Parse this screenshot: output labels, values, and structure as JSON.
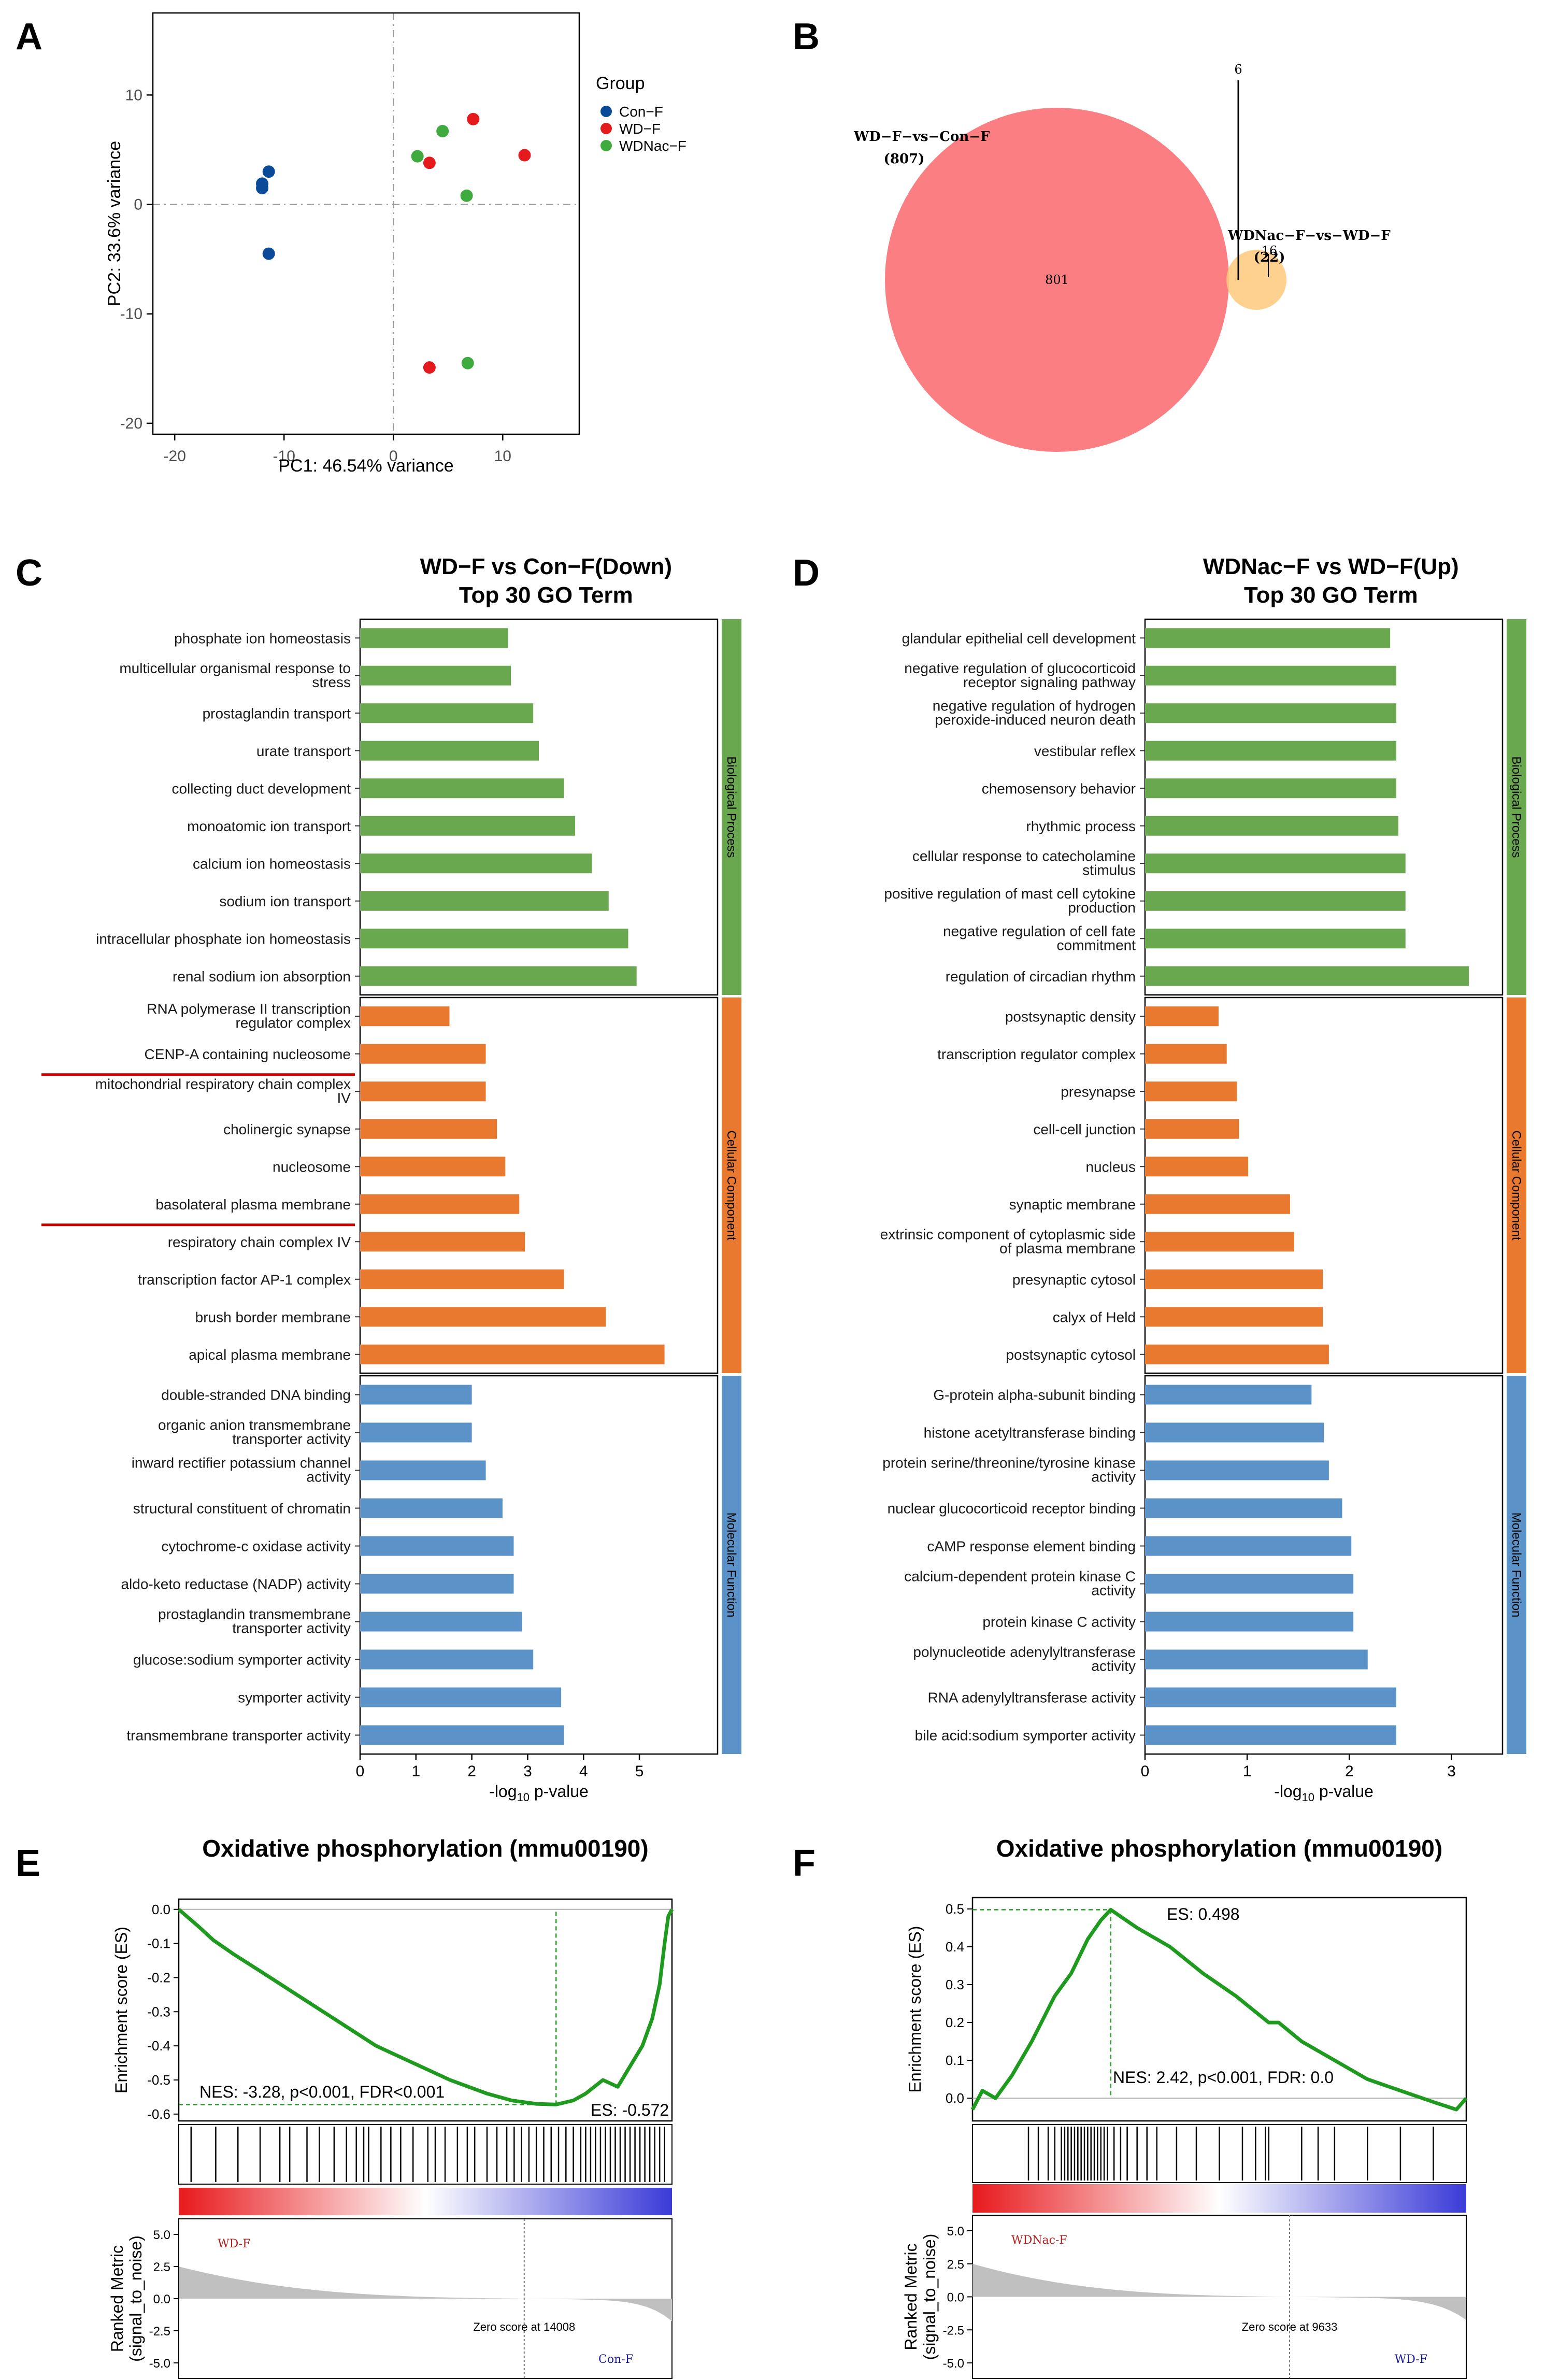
{
  "panels": [
    "A",
    "B",
    "C",
    "D",
    "E",
    "F"
  ],
  "chart_data": [
    {
      "id": "A",
      "type": "scatter",
      "title": "",
      "xlabel": "PC1: 46.54% variance",
      "ylabel": "PC2: 33.6% variance",
      "xlim": [
        -22,
        17
      ],
      "ylim": [
        -21,
        17.5
      ],
      "xticks": [
        -20,
        -10,
        0,
        10
      ],
      "yticks": [
        -20,
        -10,
        0,
        10
      ],
      "legend_title": "Group",
      "series": [
        {
          "name": "Con−F",
          "color": "#0b4a99",
          "points": [
            [
              -12.0,
              1.9
            ],
            [
              -12.0,
              1.5
            ],
            [
              -11.4,
              3.0
            ],
            [
              -11.4,
              -4.5
            ]
          ]
        },
        {
          "name": "WD−F",
          "color": "#e41a1c",
          "points": [
            [
              7.3,
              7.8
            ],
            [
              12.0,
              4.5
            ],
            [
              3.3,
              3.8
            ],
            [
              3.3,
              -14.9
            ]
          ]
        },
        {
          "name": "WDNac−F",
          "color": "#3fab3f",
          "points": [
            [
              4.5,
              6.7
            ],
            [
              2.2,
              4.4
            ],
            [
              6.7,
              0.8
            ],
            [
              6.8,
              -14.5
            ]
          ]
        }
      ]
    },
    {
      "id": "B",
      "type": "venn",
      "sets": [
        {
          "name": "WD−F−vs−Con−F",
          "total": "(807)",
          "only": "801",
          "color": "#fb7e82"
        },
        {
          "name": "WDNac−F−vs−WD−F",
          "total": "(22)",
          "only": "16",
          "color": "#ffc97a"
        }
      ],
      "intersection": "6"
    },
    {
      "id": "C",
      "type": "bar",
      "orientation": "horizontal",
      "title": [
        "WD−F vs Con−F(Down)",
        "Top 30 GO Term"
      ],
      "xlabel": "-log10 p-value",
      "xlim": [
        0,
        6.4
      ],
      "xticks": [
        0,
        1,
        2,
        3,
        4,
        5
      ],
      "underlined": [
        11,
        15
      ],
      "groups": [
        {
          "name": "Biological Process",
          "color": "#6aa84f",
          "terms": [
            {
              "label": [
                "phosphate ion homeostasis"
              ],
              "value": 2.65
            },
            {
              "label": [
                "multicellular organismal response to",
                "stress"
              ],
              "value": 2.7
            },
            {
              "label": [
                "prostaglandin transport"
              ],
              "value": 3.1
            },
            {
              "label": [
                "urate transport"
              ],
              "value": 3.2
            },
            {
              "label": [
                "collecting duct development"
              ],
              "value": 3.65
            },
            {
              "label": [
                "monoatomic ion transport"
              ],
              "value": 3.85
            },
            {
              "label": [
                "calcium ion homeostasis"
              ],
              "value": 4.15
            },
            {
              "label": [
                "sodium ion transport"
              ],
              "value": 4.45
            },
            {
              "label": [
                "intracellular phosphate ion homeostasis"
              ],
              "value": 4.8
            },
            {
              "label": [
                "renal sodium ion absorption"
              ],
              "value": 4.95
            }
          ]
        },
        {
          "name": "Cellular Component",
          "color": "#e8792f",
          "terms": [
            {
              "label": [
                "RNA polymerase II transcription",
                "regulator complex"
              ],
              "value": 1.6
            },
            {
              "label": [
                "CENP-A containing nucleosome"
              ],
              "value": 2.25
            },
            {
              "label": [
                "mitochondrial respiratory chain complex",
                "IV"
              ],
              "value": 2.25
            },
            {
              "label": [
                "cholinergic synapse"
              ],
              "value": 2.45
            },
            {
              "label": [
                "nucleosome"
              ],
              "value": 2.6
            },
            {
              "label": [
                "basolateral plasma membrane"
              ],
              "value": 2.85
            },
            {
              "label": [
                "respiratory chain complex IV"
              ],
              "value": 2.95
            },
            {
              "label": [
                "transcription factor AP-1 complex"
              ],
              "value": 3.65
            },
            {
              "label": [
                "brush border membrane"
              ],
              "value": 4.4
            },
            {
              "label": [
                "apical plasma membrane"
              ],
              "value": 5.45
            }
          ]
        },
        {
          "name": "Molecular Function",
          "color": "#5b93c9",
          "terms": [
            {
              "label": [
                "double-stranded DNA binding"
              ],
              "value": 2.0
            },
            {
              "label": [
                "organic anion transmembrane",
                "transporter activity"
              ],
              "value": 2.0
            },
            {
              "label": [
                "inward rectifier potassium channel",
                "activity"
              ],
              "value": 2.25
            },
            {
              "label": [
                "structural constituent of chromatin"
              ],
              "value": 2.55
            },
            {
              "label": [
                "cytochrome-c oxidase activity"
              ],
              "value": 2.75
            },
            {
              "label": [
                "aldo-keto reductase (NADP) activity"
              ],
              "value": 2.75
            },
            {
              "label": [
                "prostaglandin transmembrane",
                "transporter activity"
              ],
              "value": 2.9
            },
            {
              "label": [
                "glucose:sodium symporter activity"
              ],
              "value": 3.1
            },
            {
              "label": [
                "symporter activity"
              ],
              "value": 3.6
            },
            {
              "label": [
                "transmembrane transporter activity"
              ],
              "value": 3.65
            }
          ]
        }
      ]
    },
    {
      "id": "D",
      "type": "bar",
      "orientation": "horizontal",
      "title": [
        "WDNac−F vs WD−F(Up)",
        "Top 30 GO Term"
      ],
      "xlabel": "-log10 p-value",
      "xlim": [
        0,
        3.5
      ],
      "xticks": [
        0,
        1,
        2,
        3
      ],
      "underlined": [],
      "groups": [
        {
          "name": "Biological Process",
          "color": "#6aa84f",
          "terms": [
            {
              "label": [
                "glandular epithelial cell development"
              ],
              "value": 2.4
            },
            {
              "label": [
                "negative regulation of glucocorticoid",
                "receptor signaling pathway"
              ],
              "value": 2.46
            },
            {
              "label": [
                "negative regulation of hydrogen",
                "peroxide-induced neuron death"
              ],
              "value": 2.46
            },
            {
              "label": [
                "vestibular reflex"
              ],
              "value": 2.46
            },
            {
              "label": [
                "chemosensory behavior"
              ],
              "value": 2.46
            },
            {
              "label": [
                "rhythmic process"
              ],
              "value": 2.48
            },
            {
              "label": [
                "cellular response to catecholamine",
                "stimulus"
              ],
              "value": 2.55
            },
            {
              "label": [
                "positive regulation of mast cell cytokine",
                "production"
              ],
              "value": 2.55
            },
            {
              "label": [
                "negative regulation of cell fate",
                "commitment"
              ],
              "value": 2.55
            },
            {
              "label": [
                "regulation of circadian rhythm"
              ],
              "value": 3.17
            }
          ]
        },
        {
          "name": "Cellular Component",
          "color": "#e8792f",
          "terms": [
            {
              "label": [
                "postsynaptic density"
              ],
              "value": 0.72
            },
            {
              "label": [
                "transcription regulator complex"
              ],
              "value": 0.8
            },
            {
              "label": [
                "presynapse"
              ],
              "value": 0.9
            },
            {
              "label": [
                "cell-cell junction"
              ],
              "value": 0.92
            },
            {
              "label": [
                "nucleus"
              ],
              "value": 1.01
            },
            {
              "label": [
                "synaptic membrane"
              ],
              "value": 1.42
            },
            {
              "label": [
                "extrinsic component of cytoplasmic side",
                "of plasma membrane"
              ],
              "value": 1.46
            },
            {
              "label": [
                "presynaptic cytosol"
              ],
              "value": 1.74
            },
            {
              "label": [
                "calyx of Held"
              ],
              "value": 1.74
            },
            {
              "label": [
                "postsynaptic cytosol"
              ],
              "value": 1.8
            }
          ]
        },
        {
          "name": "Molecular Function",
          "color": "#5b93c9",
          "terms": [
            {
              "label": [
                "G-protein alpha-subunit binding"
              ],
              "value": 1.63
            },
            {
              "label": [
                "histone acetyltransferase binding"
              ],
              "value": 1.75
            },
            {
              "label": [
                "protein serine/threonine/tyrosine kinase",
                "activity"
              ],
              "value": 1.8
            },
            {
              "label": [
                "nuclear glucocorticoid receptor binding"
              ],
              "value": 1.93
            },
            {
              "label": [
                "cAMP response element binding"
              ],
              "value": 2.02
            },
            {
              "label": [
                "calcium-dependent protein kinase C",
                "activity"
              ],
              "value": 2.04
            },
            {
              "label": [
                "protein kinase C activity"
              ],
              "value": 2.04
            },
            {
              "label": [
                "polynucleotide adenylyltransferase",
                "activity"
              ],
              "value": 2.18
            },
            {
              "label": [
                "RNA adenylyltransferase activity"
              ],
              "value": 2.46
            },
            {
              "label": [
                "bile acid:sodium symporter activity"
              ],
              "value": 2.46
            }
          ]
        }
      ]
    },
    {
      "id": "E",
      "type": "line",
      "title": "Oxidative phosphorylation (mmu00190)",
      "ylabel": "Enrichment score (ES)",
      "ylabel_rank": [
        "Ranked Metric",
        "(signal_to_noise)"
      ],
      "ylim": [
        -0.62,
        0.03
      ],
      "yticks": [
        0.0,
        -0.1,
        -0.2,
        -0.3,
        -0.4,
        -0.5,
        -0.6
      ],
      "rank_ticks": [
        "5.0",
        "2.5",
        "0.0",
        "-2.5",
        "-5.0"
      ],
      "total_genes": 20000,
      "peak_rank": 15300,
      "peak_es": -0.572,
      "es_label": "ES: -0.572",
      "stats": "NES: -3.28, p<0.001, FDR<0.001",
      "zero_rank": 14008,
      "zero_label": "Zero score at 14008",
      "pos_label": "WD-F",
      "neg_label": "Con-F",
      "curve": [
        [
          0,
          0.0
        ],
        [
          800,
          -0.05
        ],
        [
          1400,
          -0.09
        ],
        [
          2200,
          -0.13
        ],
        [
          3500,
          -0.19
        ],
        [
          5000,
          -0.26
        ],
        [
          6500,
          -0.33
        ],
        [
          8000,
          -0.4
        ],
        [
          9500,
          -0.45
        ],
        [
          11000,
          -0.5
        ],
        [
          12500,
          -0.54
        ],
        [
          13500,
          -0.56
        ],
        [
          14500,
          -0.57
        ],
        [
          15300,
          -0.572
        ],
        [
          16000,
          -0.56
        ],
        [
          16500,
          -0.54
        ],
        [
          17200,
          -0.5
        ],
        [
          17800,
          -0.52
        ],
        [
          18300,
          -0.46
        ],
        [
          18800,
          -0.4
        ],
        [
          19200,
          -0.32
        ],
        [
          19500,
          -0.22
        ],
        [
          19700,
          -0.1
        ],
        [
          19850,
          -0.02
        ],
        [
          20000,
          0.0
        ]
      ],
      "hits": [
        500,
        1500,
        2400,
        3300,
        4100,
        4500,
        5200,
        5700,
        6300,
        6800,
        7200,
        7500,
        7700,
        8200,
        8600,
        9000,
        9500,
        10100,
        10400,
        10800,
        11300,
        11700,
        12000,
        12500,
        12900,
        13300,
        13600,
        13900,
        14200,
        14500,
        14800,
        15100,
        15400,
        15700,
        16000,
        16300,
        16500,
        16700,
        16900,
        17100,
        17300,
        17500,
        17700,
        17900,
        18100,
        18300,
        18500,
        18700,
        18900,
        19100,
        19300,
        19500,
        19700
      ]
    },
    {
      "id": "F",
      "type": "line",
      "title": "Oxidative phosphorylation (mmu00190)",
      "ylabel": "Enrichment score (ES)",
      "ylabel_rank": [
        "Ranked Metric",
        "(signal_to_noise)"
      ],
      "ylim": [
        -0.06,
        0.53
      ],
      "yticks": [
        0.0,
        0.1,
        0.2,
        0.3,
        0.4,
        0.5
      ],
      "rank_ticks": [
        "5.0",
        "2.5",
        "0.0",
        "-2.5",
        "-5.0"
      ],
      "total_genes": 15000,
      "peak_rank": 4200,
      "peak_es": 0.498,
      "es_label": "ES: 0.498",
      "stats": "NES: 2.42, p<0.001, FDR: 0.0",
      "zero_rank": 9633,
      "zero_label": "Zero score at 9633",
      "pos_label": "WDNac-F",
      "neg_label": "WD-F",
      "curve": [
        [
          0,
          -0.03
        ],
        [
          300,
          0.02
        ],
        [
          700,
          0.0
        ],
        [
          1200,
          0.06
        ],
        [
          1800,
          0.15
        ],
        [
          2500,
          0.27
        ],
        [
          3000,
          0.33
        ],
        [
          3500,
          0.42
        ],
        [
          3900,
          0.47
        ],
        [
          4200,
          0.498
        ],
        [
          5000,
          0.45
        ],
        [
          6000,
          0.4
        ],
        [
          7000,
          0.33
        ],
        [
          8000,
          0.27
        ],
        [
          9000,
          0.2
        ],
        [
          9300,
          0.2
        ],
        [
          10000,
          0.15
        ],
        [
          11000,
          0.1
        ],
        [
          12000,
          0.05
        ],
        [
          13000,
          0.02
        ],
        [
          14000,
          -0.01
        ],
        [
          14700,
          -0.03
        ],
        [
          15000,
          0.0
        ]
      ],
      "hits": [
        1700,
        2000,
        2300,
        2500,
        2700,
        2800,
        2900,
        3000,
        3100,
        3200,
        3300,
        3400,
        3500,
        3600,
        3700,
        3800,
        3900,
        4000,
        4100,
        4300,
        4500,
        4700,
        5000,
        5300,
        5600,
        6200,
        6800,
        7500,
        8200,
        8600,
        8900,
        9000,
        10000,
        10500,
        11000,
        12000,
        13000,
        14000
      ]
    }
  ]
}
